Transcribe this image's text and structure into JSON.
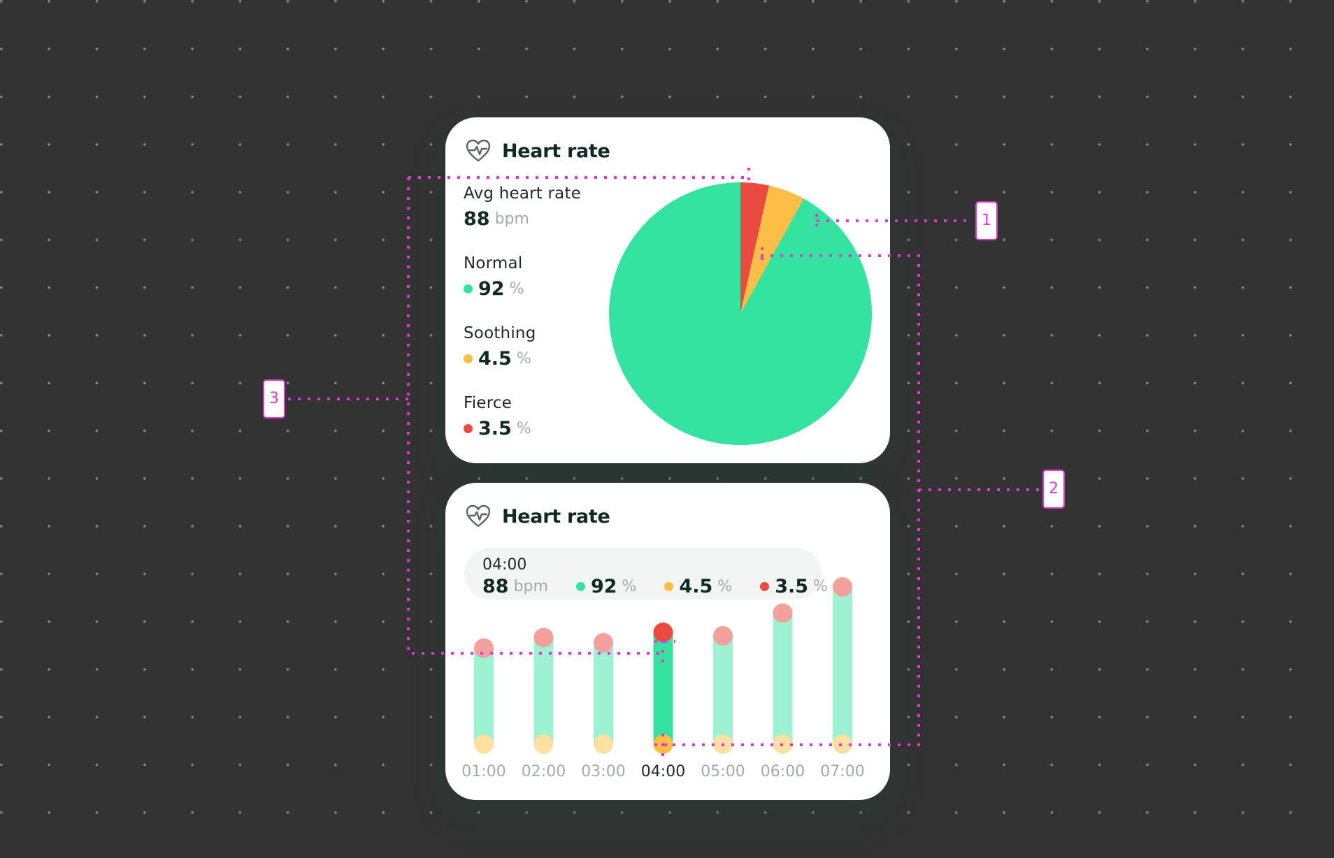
{
  "top_card": {
    "title": "Heart rate",
    "icon": "heart-pulse-icon",
    "avg": {
      "label": "Avg heart rate",
      "value": "88",
      "unit": "bpm"
    },
    "stats": [
      {
        "label": "Normal",
        "value": "92",
        "unit": "%",
        "color": "#33e39f"
      },
      {
        "label": "Soothing",
        "value": "4.5",
        "unit": "%",
        "color": "#fdbe45"
      },
      {
        "label": "Fierce",
        "value": "3.5",
        "unit": "%",
        "color": "#eb4a40"
      }
    ]
  },
  "bottom_card": {
    "title": "Heart rate",
    "icon": "heart-pulse-icon",
    "tooltip": {
      "time": "04:00",
      "bpm": "88",
      "bpm_unit": "bpm",
      "normal": "92",
      "soothing": "4.5",
      "fierce": "3.5",
      "unit": "%"
    }
  },
  "annotations": [
    "1",
    "2",
    "3"
  ],
  "chart_data": [
    {
      "type": "pie",
      "categories": [
        "Fierce",
        "Soothing",
        "Normal"
      ],
      "values": [
        3.5,
        4.5,
        92
      ],
      "colors": [
        "#eb4a40",
        "#fdbe45",
        "#33e39f"
      ],
      "start": "12 o'clock, clockwise"
    },
    {
      "type": "bar",
      "categories": [
        "01:00",
        "02:00",
        "03:00",
        "04:00",
        "05:00",
        "06:00",
        "07:00"
      ],
      "highlighted": "04:00",
      "series": [
        {
          "name": "",
          "values": [
            0.55,
            0.61,
            0.58,
            0.64,
            0.62,
            0.75,
            0.9
          ]
        }
      ],
      "ylim": [
        0,
        1
      ],
      "colors": {
        "bar": "#9df3d1",
        "bar_active": "#33e39f",
        "top": "#f3a19a",
        "top_active": "#eb4a40",
        "bottom": "#fde0a2",
        "bottom_active": "#fdbe45"
      }
    }
  ]
}
